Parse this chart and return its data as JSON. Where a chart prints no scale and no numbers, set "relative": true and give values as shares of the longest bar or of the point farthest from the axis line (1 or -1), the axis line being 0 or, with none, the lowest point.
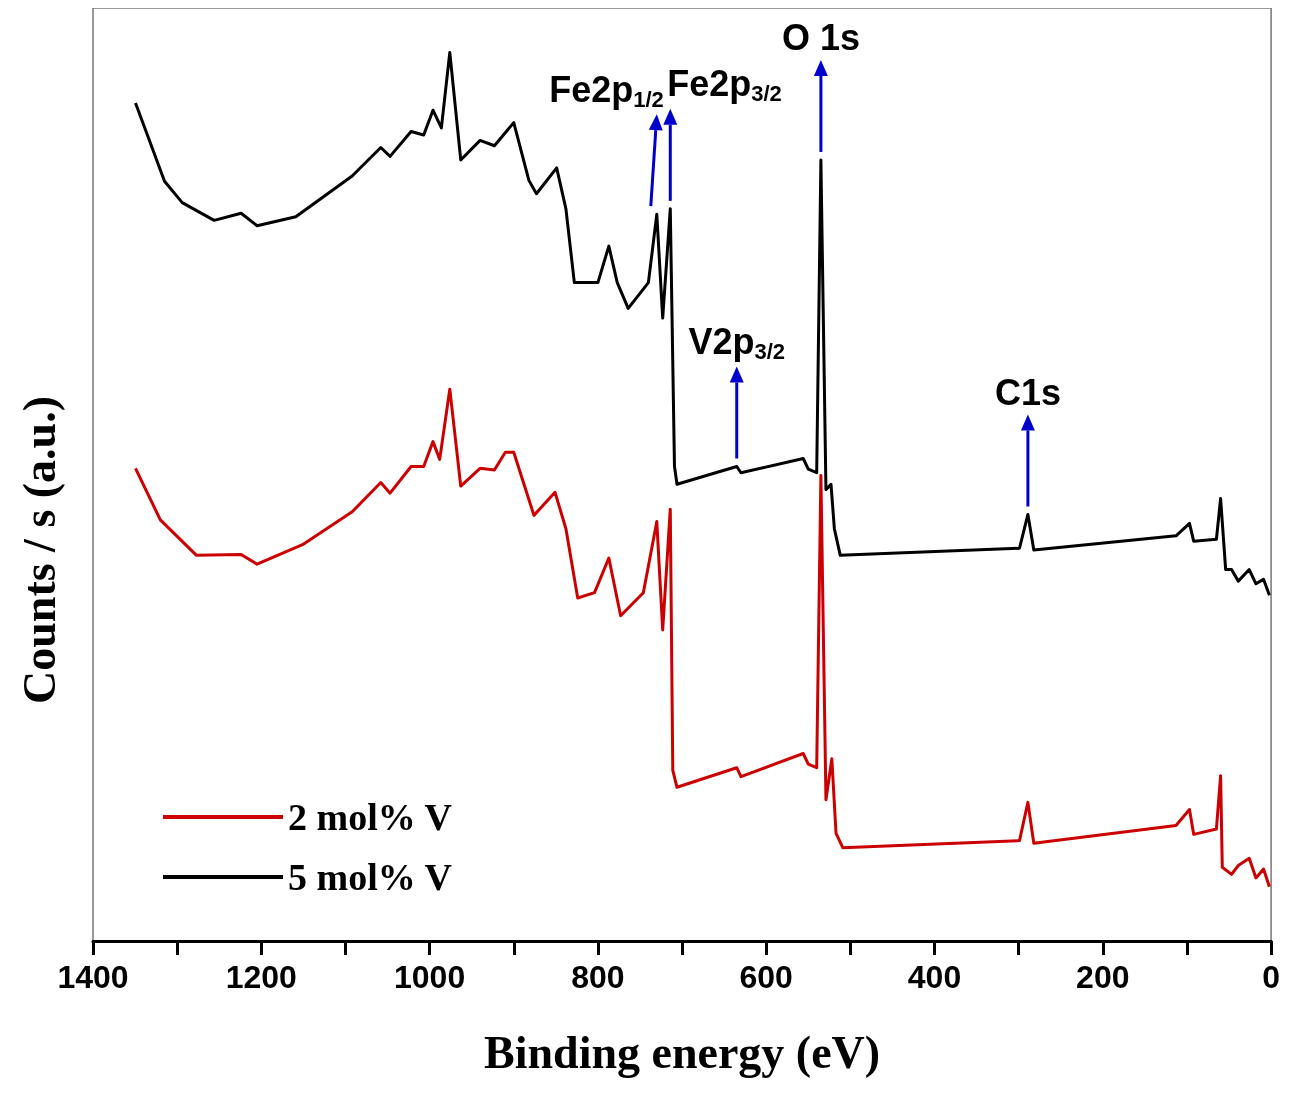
{
  "chart_data": {
    "type": "line",
    "relative": true,
    "xlabel": "Binding energy (eV)",
    "ylabel": "Counts / s (a.u.)",
    "xlim": [
      1400,
      0
    ],
    "xticks": [
      0,
      {
        "value": 100,
        "label": null
      },
      200,
      {
        "value": 300,
        "label": null
      },
      400,
      {
        "value": 500,
        "label": null
      },
      600,
      {
        "value": 700,
        "label": null
      },
      800,
      {
        "value": 900,
        "label": null
      },
      1000,
      {
        "value": 1100,
        "label": null
      },
      1200,
      {
        "value": 1300,
        "label": null
      },
      1400
    ],
    "grid": false,
    "legend": "bottom left",
    "marker": "none",
    "line_style": "solid",
    "series": [
      {
        "name": "2 mol% V",
        "color": "#cc0000",
        "x": [
          1349.5,
          1320,
          1277,
          1224,
          1205,
          1151,
          1092,
          1058,
          1047,
          1022,
          1007,
          996,
          988,
          976,
          963,
          940,
          923,
          910,
          900,
          876,
          851,
          838,
          824,
          804,
          787,
          773,
          746,
          730,
          723,
          714,
          711,
          706,
          635,
          630,
          556,
          550,
          540,
          535,
          529,
          522,
          517,
          509,
          299,
          289,
          282,
          113,
          97,
          92,
          65,
          60,
          58,
          47,
          39,
          26,
          18,
          9,
          2
        ],
        "values": [
          0.532,
          0.474,
          0.434,
          0.435,
          0.424,
          0.446,
          0.483,
          0.516,
          0.504,
          0.534,
          0.534,
          0.562,
          0.542,
          0.621,
          0.512,
          0.532,
          0.53,
          0.55,
          0.55,
          0.479,
          0.505,
          0.464,
          0.386,
          0.392,
          0.431,
          0.366,
          0.392,
          0.472,
          0.35,
          0.486,
          0.192,
          0.173,
          0.195,
          0.185,
          0.211,
          0.199,
          0.195,
          0.524,
          0.159,
          0.205,
          0.121,
          0.105,
          0.113,
          0.156,
          0.11,
          0.13,
          0.148,
          0.12,
          0.126,
          0.186,
          0.083,
          0.075,
          0.085,
          0.093,
          0.071,
          0.081,
          0.061
        ]
      },
      {
        "name": "5 mol% V",
        "color": "#000000",
        "x": [
          1349.5,
          1340,
          1315,
          1294,
          1256,
          1224,
          1205,
          1159,
          1092,
          1058,
          1047,
          1022,
          1007,
          996,
          986,
          976,
          963,
          940,
          923,
          900,
          882,
          873,
          849,
          838,
          828,
          800,
          787,
          777,
          764,
          740,
          730,
          723,
          714,
          709,
          706,
          635,
          630,
          556,
          550,
          540,
          535,
          529,
          523,
          519,
          512,
          299,
          289,
          282,
          113,
          97,
          92,
          65,
          60,
          54,
          47,
          39,
          26,
          18,
          9,
          2
        ],
        "values": [
          0.943,
          0.919,
          0.855,
          0.831,
          0.811,
          0.819,
          0.805,
          0.815,
          0.861,
          0.893,
          0.883,
          0.911,
          0.907,
          0.935,
          0.915,
          1.0,
          0.879,
          0.901,
          0.895,
          0.921,
          0.856,
          0.841,
          0.87,
          0.824,
          0.741,
          0.741,
          0.782,
          0.741,
          0.712,
          0.741,
          0.818,
          0.701,
          0.824,
          0.534,
          0.514,
          0.534,
          0.527,
          0.543,
          0.531,
          0.527,
          0.879,
          0.508,
          0.514,
          0.464,
          0.434,
          0.442,
          0.48,
          0.44,
          0.456,
          0.47,
          0.45,
          0.452,
          0.498,
          0.418,
          0.418,
          0.405,
          0.418,
          0.402,
          0.407,
          0.389
        ]
      }
    ],
    "annotations": [
      {
        "text": "Fe2p$_{1/2}$",
        "x": 730,
        "y": 0.818
      },
      {
        "text": "Fe2p$_{3/2}$",
        "x": 714,
        "y": 0.824
      },
      {
        "text": "O 1s",
        "x": 535,
        "y": 0.879
      },
      {
        "text": "V2p$_{3/2}$",
        "x": 635,
        "y": 0.534
      },
      {
        "text": "C1s",
        "x": 289,
        "y": 0.48
      }
    ]
  }
}
